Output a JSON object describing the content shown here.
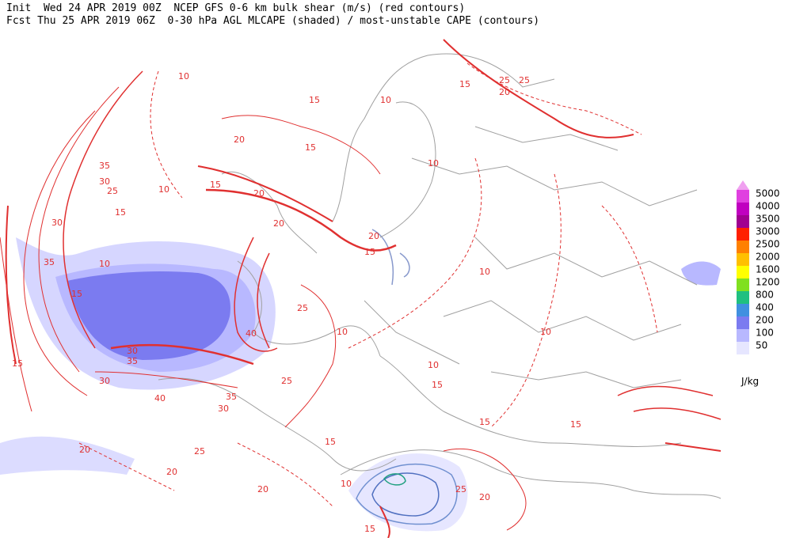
{
  "header": {
    "lines": [
      "Init  Wed 24 APR 2019 00Z  NCEP GFS 0-6 km bulk shear (m/s) (red contours)",
      "Fcst Thu 25 APR 2019 06Z  0-30 hPa AGL MLCAPE (shaded) / most-unstable CAPE (contours)"
    ]
  },
  "contour_labels": [
    "10",
    "15",
    "25",
    "25",
    "20",
    "15",
    "10",
    "20",
    "15",
    "10",
    "35",
    "30",
    "25",
    "10",
    "15",
    "20",
    "15",
    "30",
    "35",
    "10",
    "15",
    "25",
    "20",
    "40",
    "25",
    "10",
    "15",
    "20",
    "35",
    "30",
    "30",
    "40",
    "35",
    "30",
    "20",
    "25",
    "15",
    "10",
    "10",
    "15",
    "20",
    "20",
    "15",
    "15",
    "10",
    "15",
    "25",
    "20",
    "10",
    "15"
  ],
  "legend": {
    "levels": [
      5000,
      4000,
      3500,
      3000,
      2500,
      2000,
      1600,
      1200,
      800,
      400,
      200,
      100,
      50
    ],
    "colors": [
      "#e040e0",
      "#c000c0",
      "#a00090",
      "#ff2000",
      "#ff8000",
      "#ffc000",
      "#ffff00",
      "#80e020",
      "#20c080",
      "#4090e0",
      "#7b7bf0",
      "#b8b8ff",
      "#e6e6ff"
    ],
    "top_color": "#f0a0f0",
    "unit": "J/kg"
  }
}
